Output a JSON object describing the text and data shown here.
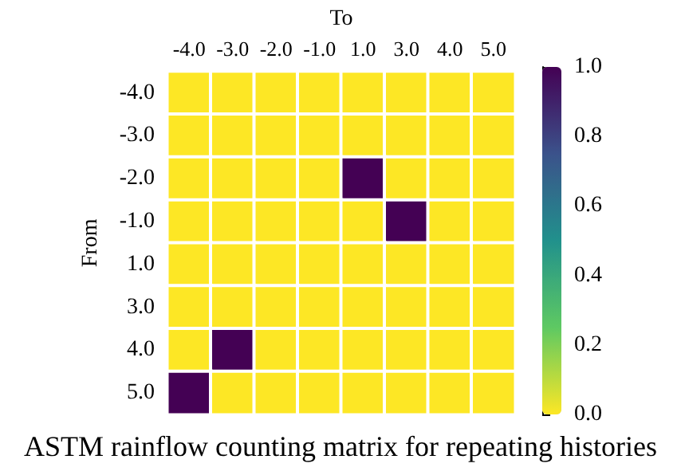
{
  "chart_data": {
    "type": "heatmap",
    "title": "ASTM rainflow counting matrix for repeating histories",
    "xlabel": "To",
    "ylabel": "From",
    "categories": [
      "-4.0",
      "-3.0",
      "-2.0",
      "-1.0",
      "1.0",
      "3.0",
      "4.0",
      "5.0"
    ],
    "y_categories": [
      "-4.0",
      "-3.0",
      "-2.0",
      "-1.0",
      "1.0",
      "3.0",
      "4.0",
      "5.0"
    ],
    "cells": [
      [
        0,
        0,
        0,
        0,
        0,
        0,
        0,
        0
      ],
      [
        0,
        0,
        0,
        0,
        0,
        0,
        0,
        0
      ],
      [
        0,
        0,
        0,
        0,
        1,
        0,
        0,
        0
      ],
      [
        0,
        0,
        0,
        0,
        0,
        1,
        0,
        0
      ],
      [
        0,
        0,
        0,
        0,
        0,
        0,
        0,
        0
      ],
      [
        0,
        0,
        0,
        0,
        0,
        0,
        0,
        0
      ],
      [
        0,
        1,
        0,
        0,
        0,
        0,
        0,
        0
      ],
      [
        1,
        0,
        0,
        0,
        0,
        0,
        0,
        0
      ]
    ],
    "clim": [
      0,
      1
    ],
    "cticks": [
      {
        "value": 0,
        "label": "0.0"
      },
      {
        "value": 0.2,
        "label": "0.2"
      },
      {
        "value": 0.4,
        "label": "0.4"
      },
      {
        "value": 0.6,
        "label": "0.6"
      },
      {
        "value": 0.8,
        "label": "0.8"
      },
      {
        "value": 1,
        "label": "1.0"
      }
    ]
  }
}
